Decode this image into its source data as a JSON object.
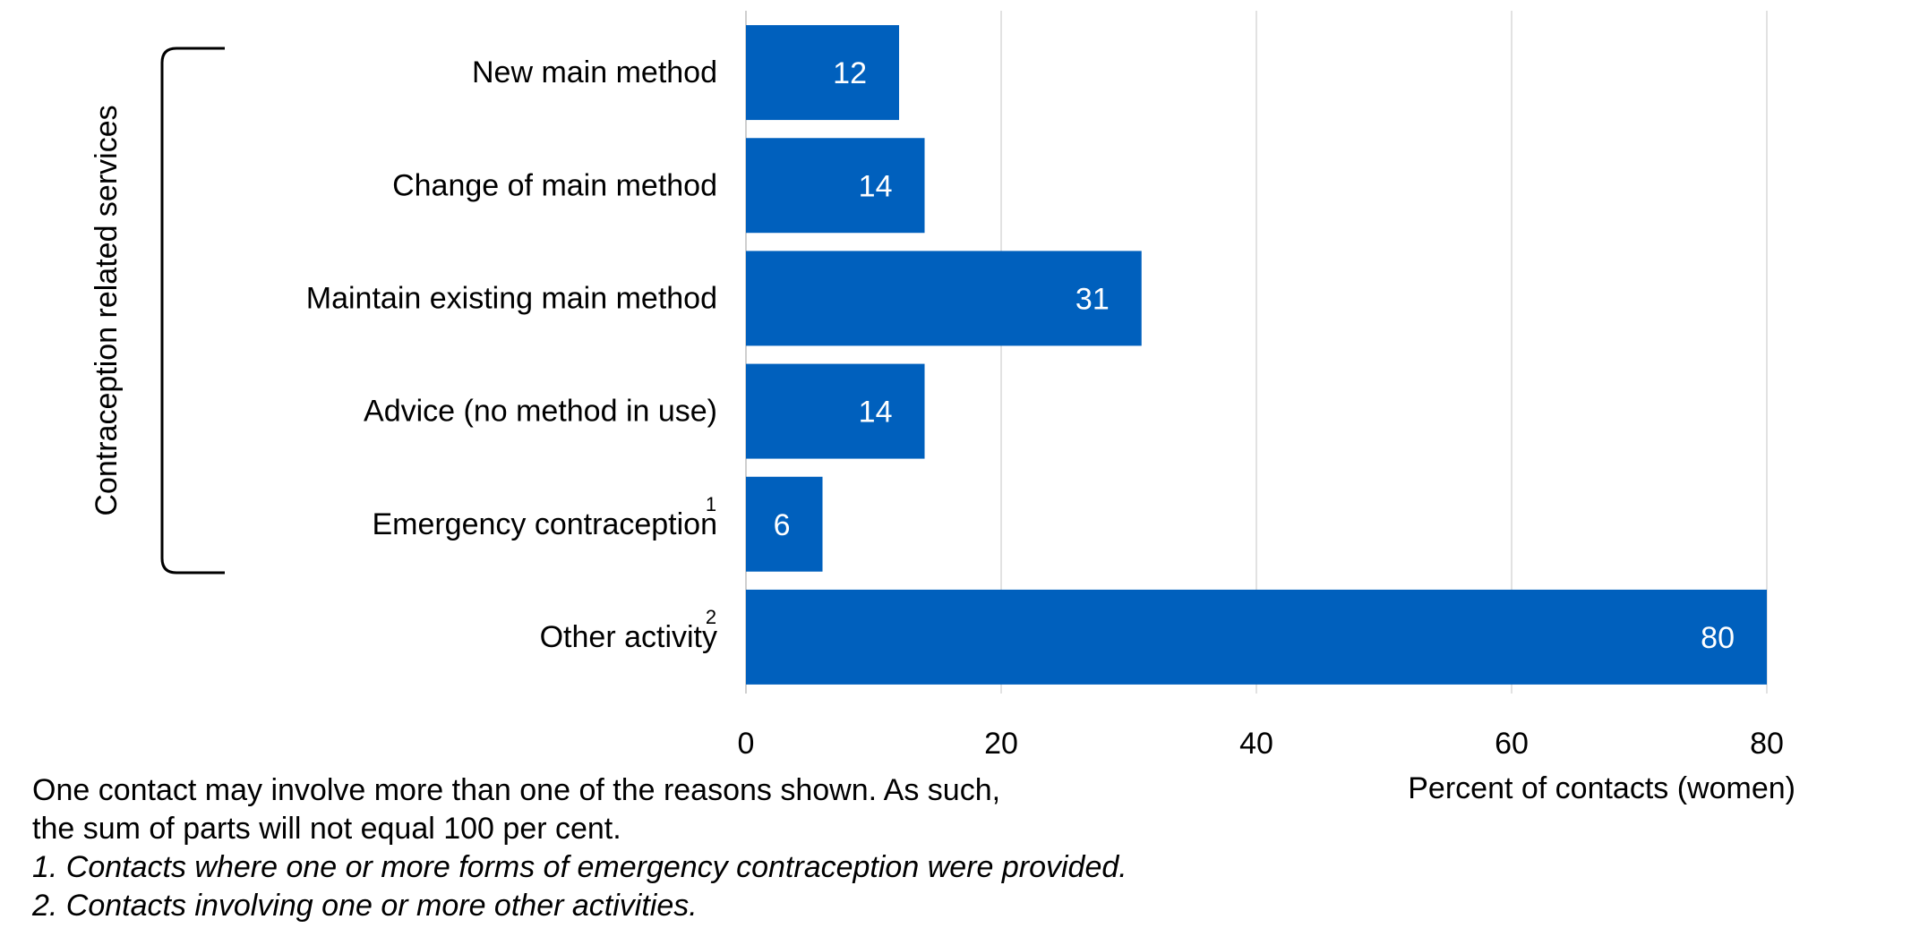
{
  "chart_data": {
    "type": "bar",
    "orientation": "horizontal",
    "categories": [
      "New main method",
      "Change of main method",
      "Maintain existing main method",
      "Advice (no method in use)",
      "Emergency contraception",
      "Other activity"
    ],
    "category_superscripts": [
      "",
      "",
      "",
      "",
      "1",
      "2"
    ],
    "values": [
      12,
      14,
      31,
      14,
      6,
      80
    ],
    "data_labels": [
      "12",
      "14",
      "31",
      "14",
      "6",
      "80"
    ],
    "bar_color": "#0060BD",
    "xlabel": "Percent of contacts (women)",
    "xlim": [
      0,
      80
    ],
    "xticks": [
      0,
      20,
      40,
      60,
      80
    ],
    "xtick_labels": [
      "0",
      "20",
      "40",
      "60",
      "80"
    ],
    "gridlines": "vertical",
    "group_label": "Contraception related services",
    "group_covers": [
      "New main method",
      "Change of main method",
      "Maintain existing main method",
      "Advice (no method in use)",
      "Emergency contraception"
    ]
  },
  "notes": {
    "line1": "One contact may involve more than one of the reasons shown. As such,",
    "line2": "the sum of parts will not equal 100 per cent.",
    "footnote1": "1. Contacts where one or more forms of emergency contraception were provided.",
    "footnote2": "2. Contacts involving one or more other activities."
  }
}
